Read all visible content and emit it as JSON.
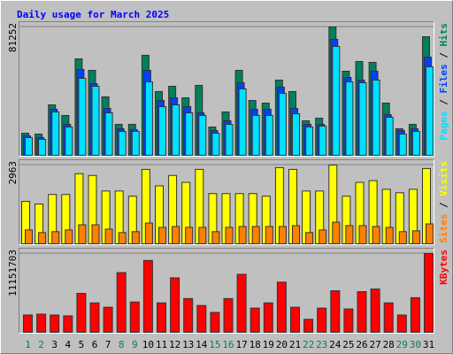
{
  "title": "Daily usage for March 2025",
  "chart_data": [
    {
      "type": "bar",
      "ylim": [
        0,
        81252
      ],
      "yticks": [
        81252
      ],
      "legend_separator": " / ",
      "series": [
        {
          "name": "Hits",
          "color": "#00805c",
          "values": [
            14000,
            13450,
            31940,
            25220,
            61080,
            53800,
            36990,
            19610,
            19610,
            63320,
            40350,
            43710,
            36420,
            44270,
            17930,
            27460,
            53800,
            34740,
            33060,
            47630,
            40350,
            21850,
            23540,
            81252,
            53240,
            59400,
            58840,
            33060,
            16810,
            19610,
            75090
          ]
        },
        {
          "name": "Files",
          "color": "#0040ff",
          "values": [
            12330,
            11210,
            29140,
            19610,
            54360,
            45390,
            29700,
            16810,
            16250,
            53800,
            34740,
            36420,
            30820,
            26900,
            15690,
            21850,
            45950,
            29140,
            29140,
            43150,
            29700,
            19610,
            19610,
            73410,
            49310,
            47630,
            53240,
            25780,
            15690,
            16810,
            62200
          ]
        },
        {
          "name": "Pages",
          "color": "#00e0ff",
          "values": [
            11210,
            10090,
            27460,
            17930,
            48750,
            43710,
            26900,
            15130,
            15130,
            46510,
            30820,
            31940,
            26900,
            25220,
            14010,
            19610,
            42030,
            25220,
            25220,
            39230,
            26340,
            17930,
            18490,
            68930,
            46510,
            45950,
            47630,
            24100,
            13450,
            15130,
            56040
          ]
        }
      ]
    },
    {
      "type": "bar",
      "ylim": [
        0,
        2963
      ],
      "yticks": [
        2963
      ],
      "legend_separator": " / ",
      "series": [
        {
          "name": "Visits",
          "color": "#ffff00",
          "values": [
            1595,
            1498,
            1856,
            1856,
            2637,
            2572,
            1986,
            1986,
            1791,
            2800,
            2182,
            2572,
            2312,
            2800,
            1889,
            1889,
            1889,
            1889,
            1791,
            2865,
            2800,
            1986,
            1986,
            2963,
            1791,
            2312,
            2377,
            2051,
            1921,
            2051,
            2833
          ]
        },
        {
          "name": "Sites",
          "color": "#ff8000",
          "values": [
            521,
            423,
            456,
            521,
            716,
            716,
            554,
            423,
            456,
            781,
            619,
            651,
            619,
            619,
            456,
            619,
            651,
            651,
            651,
            651,
            684,
            423,
            521,
            814,
            684,
            684,
            651,
            619,
            456,
            488,
            749
          ]
        }
      ]
    },
    {
      "type": "bar",
      "ylim": [
        0,
        11151703
      ],
      "yticks": [
        11151703
      ],
      "categories": [
        "1",
        "2",
        "3",
        "4",
        "5",
        "6",
        "7",
        "8",
        "9",
        "10",
        "11",
        "12",
        "13",
        "14",
        "15",
        "16",
        "17",
        "18",
        "19",
        "20",
        "21",
        "22",
        "23",
        "24",
        "25",
        "26",
        "27",
        "28",
        "29",
        "30",
        "31"
      ],
      "label_colors": [
        "#00805c",
        "#00805c",
        "#000000",
        "#000000",
        "#000000",
        "#000000",
        "#000000",
        "#00805c",
        "#00805c",
        "#000000",
        "#000000",
        "#000000",
        "#000000",
        "#000000",
        "#00805c",
        "#00805c",
        "#000000",
        "#000000",
        "#000000",
        "#000000",
        "#000000",
        "#00805c",
        "#00805c",
        "#000000",
        "#000000",
        "#000000",
        "#000000",
        "#000000",
        "#00805c",
        "#00805c",
        "#000000"
      ],
      "series": [
        {
          "name": "KBytes",
          "color": "#ff0000",
          "values": [
            2450900,
            2573500,
            2450900,
            2328400,
            5514600,
            4166600,
            3553800,
            8455700,
            4289100,
            10171300,
            4166600,
            7720400,
            4779300,
            3798900,
            2818600,
            4779300,
            8210600,
            3431300,
            4166600,
            7107700,
            3553800,
            1838200,
            3431300,
            5882200,
            3308700,
            5759700,
            6127300,
            4166600,
            2450900,
            4901800,
            11151703
          ]
        }
      ]
    }
  ]
}
